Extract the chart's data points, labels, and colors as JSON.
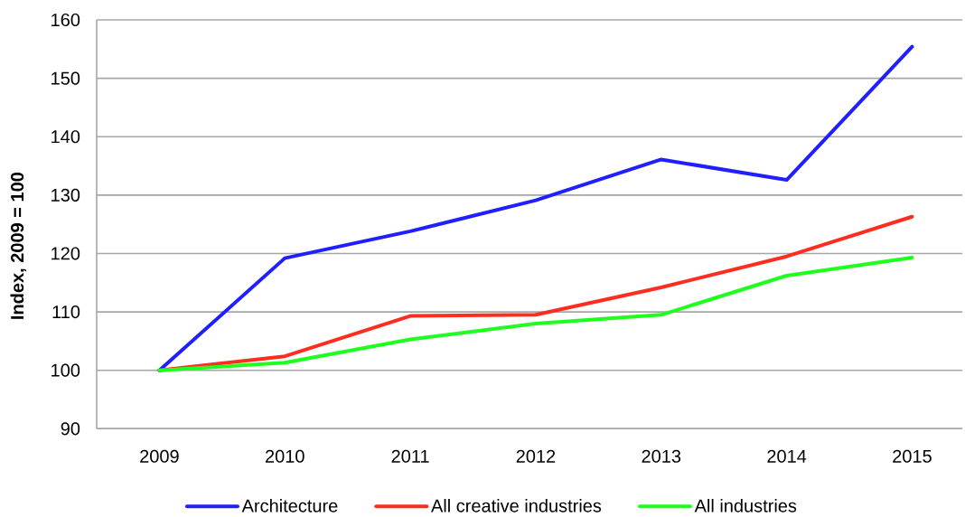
{
  "chart_data": {
    "type": "line",
    "ylabel": "Index, 2009 = 100",
    "categories": [
      "2009",
      "2010",
      "2011",
      "2012",
      "2013",
      "2014",
      "2015"
    ],
    "series": [
      {
        "name": "Architecture",
        "color": "#1f1fff",
        "values": [
          100,
          119.2,
          123.8,
          129.1,
          136.1,
          132.6,
          155.4
        ]
      },
      {
        "name": "All creative industries",
        "color": "#ff2d1f",
        "values": [
          100,
          102.4,
          109.3,
          109.5,
          114.2,
          119.5,
          126.3
        ]
      },
      {
        "name": "All industries",
        "color": "#1fff1f",
        "values": [
          100,
          101.3,
          105.3,
          108.0,
          109.5,
          116.2,
          119.3
        ]
      }
    ],
    "ylim": [
      90,
      160
    ],
    "yticks": [
      90,
      100,
      110,
      120,
      130,
      140,
      150,
      160
    ],
    "grid": "y",
    "legend": "bottom",
    "line_style": "solid"
  }
}
